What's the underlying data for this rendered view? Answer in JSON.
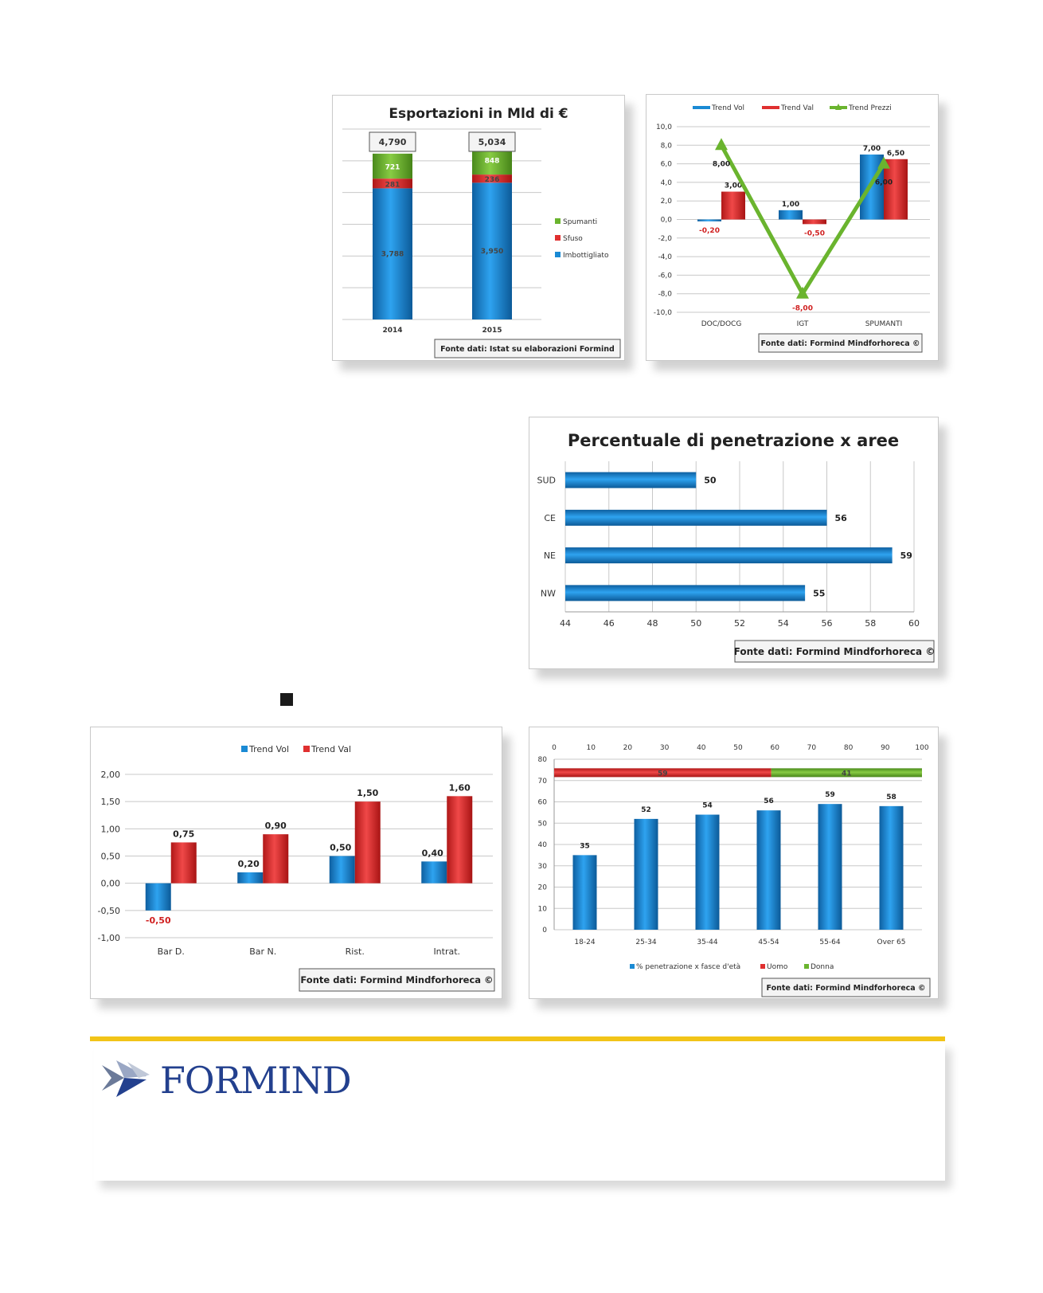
{
  "chart1": {
    "type": "bar",
    "title": "Esportazioni in Mld di €",
    "categories": [
      "2014",
      "2015"
    ],
    "totals": [
      "4,790",
      "5,034"
    ],
    "series": [
      {
        "name": "Imbottigliato",
        "values": [
          3.788,
          3.95
        ],
        "labels": [
          "3,788",
          "3,950"
        ],
        "color": "#1a8ad4"
      },
      {
        "name": "Sfuso",
        "values": [
          0.281,
          0.236
        ],
        "labels": [
          "281",
          "236"
        ],
        "color": "#e03030"
      },
      {
        "name": "Spumanti",
        "values": [
          0.721,
          0.848
        ],
        "labels": [
          "721",
          "848"
        ],
        "color": "#6ab42e"
      }
    ],
    "source": "Fonte dati: Istat su elaborazioni Formind"
  },
  "chart2": {
    "type": "bar",
    "categories": [
      "DOC/DOCG",
      "IGT",
      "SPUMANTI"
    ],
    "ylim": [
      -10,
      10
    ],
    "yticks": [
      "10,0",
      "8,0",
      "6,0",
      "4,0",
      "2,0",
      "0,0",
      "-2,0",
      "-4,0",
      "-6,0",
      "-8,0",
      "-10,0"
    ],
    "series": [
      {
        "name": "Trend Vol",
        "values": [
          -0.2,
          1.0,
          7.0
        ],
        "labels": [
          "-0,20",
          "1,00",
          "7,00"
        ],
        "color": "#1a8ad4"
      },
      {
        "name": "Trend Val",
        "values": [
          3.0,
          -0.5,
          6.5
        ],
        "labels": [
          "3,00",
          "-0,50",
          "6,50"
        ],
        "color": "#e03030"
      },
      {
        "name": "Trend Prezzi",
        "values": [
          8.0,
          -8.0,
          6.0
        ],
        "labels": [
          "8,00",
          "-8,00",
          "6,00"
        ],
        "color": "#6ab42e"
      }
    ],
    "source": "Fonte dati: Formind Mindforhoreca ©"
  },
  "chart3": {
    "type": "bar",
    "title": "Percentuale di penetrazione x aree",
    "categories": [
      "SUD",
      "CE",
      "NE",
      "NW"
    ],
    "values": [
      50,
      56,
      59,
      55
    ],
    "xlim": [
      44,
      60
    ],
    "xticks": [
      "44",
      "46",
      "48",
      "50",
      "52",
      "54",
      "56",
      "58",
      "60"
    ],
    "source": "Fonte dati: Formind Mindforhoreca ©"
  },
  "chart4": {
    "type": "bar",
    "categories": [
      "Bar D.",
      "Bar N.",
      "Rist.",
      "Intrat."
    ],
    "ylim": [
      -1,
      2
    ],
    "yticks": [
      "2,00",
      "1,50",
      "1,00",
      "0,50",
      "0,00",
      "-0,50",
      "-1,00"
    ],
    "series": [
      {
        "name": "Trend Vol",
        "values": [
          -0.5,
          0.2,
          0.5,
          0.4
        ],
        "labels": [
          "-0,50",
          "0,20",
          "0,50",
          "0,40"
        ],
        "color": "#1a8ad4"
      },
      {
        "name": "Trend Val",
        "values": [
          0.75,
          0.9,
          1.5,
          1.6
        ],
        "labels": [
          "0,75",
          "0,90",
          "1,50",
          "1,60"
        ],
        "color": "#e03030"
      }
    ],
    "source": "Fonte dati: Formind Mindforhoreca ©"
  },
  "chart5": {
    "type": "bar",
    "categories": [
      "18-24",
      "25-34",
      "35-44",
      "45-54",
      "55-64",
      "Over 65"
    ],
    "values": [
      35,
      52,
      54,
      56,
      59,
      58
    ],
    "ylim": [
      0,
      80
    ],
    "yticks": [
      "80",
      "70",
      "60",
      "50",
      "40",
      "30",
      "20",
      "10",
      "0"
    ],
    "top_axis": [
      "0",
      "10",
      "20",
      "30",
      "40",
      "50",
      "60",
      "70",
      "80",
      "90",
      "100"
    ],
    "gender": [
      {
        "name": "Uomo",
        "value": 59,
        "label": "59",
        "color": "#e03030"
      },
      {
        "name": "Donna",
        "value": 41,
        "label": "41",
        "color": "#6ab42e"
      }
    ],
    "series_name": "% penetrazione x fasce d'età",
    "source": "Fonte dati: Formind Mindforhoreca ©"
  },
  "logo": {
    "text": "FORMIND"
  }
}
